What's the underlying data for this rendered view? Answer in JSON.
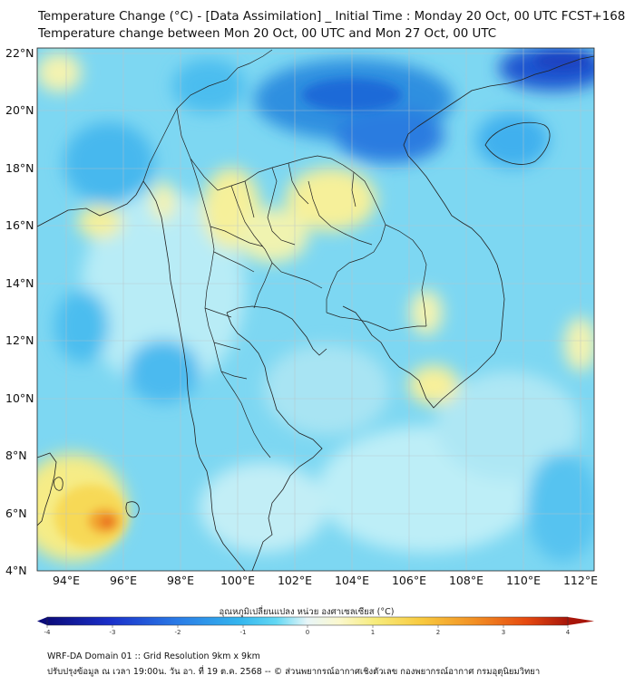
{
  "header": {
    "title_line1": "Temperature Change (°C) - [Data Assimilation] _ Initial Time : Monday 20 Oct, 00 UTC FCST+168",
    "title_line2": "Temperature change between Mon 20 Oct, 00 UTC and Mon 27 Oct, 00 UTC"
  },
  "map": {
    "lat_labels": [
      "22°N",
      "20°N",
      "18°N",
      "16°N",
      "14°N",
      "12°N",
      "10°N",
      "8°N",
      "6°N",
      "4°N"
    ],
    "lon_labels": [
      "94°E",
      "96°E",
      "98°E",
      "100°E",
      "102°E",
      "104°E",
      "106°E",
      "108°E",
      "110°E",
      "112°E"
    ],
    "lat_range": [
      4,
      22.3
    ],
    "lon_range": [
      93.0,
      112.5
    ]
  },
  "colorbar": {
    "title": "อุณหภูมิเปลี่ยนแปลง หน่วย องศาเซลเซียส (°C)",
    "range": [
      -4,
      4
    ],
    "tick_labels": [
      "-4",
      "-3",
      "-2",
      "-1",
      "0",
      "1",
      "2",
      "3",
      "4"
    ],
    "colors": [
      "#0b0b7a",
      "#1a2fc9",
      "#2a7be6",
      "#34b6ee",
      "#62d8f4",
      "#d6f2f8",
      "#fbf8cf",
      "#f7ec7c",
      "#f8c93e",
      "#f29024",
      "#e64a10",
      "#a8150a"
    ]
  },
  "footer": {
    "line1": "WRF-DA Domain 01 :: Grid Resolution 9km x 9km",
    "line2": "ปรับปรุงข้อมูล ณ เวลา 19:00น. วัน อา. ที่ 19 ต.ค. 2568 -- © ส่วนพยากรณ์อากาศเชิงตัวเลข กองพยากรณ์อากาศ กรมอุตุนิยมวิทยา"
  }
}
